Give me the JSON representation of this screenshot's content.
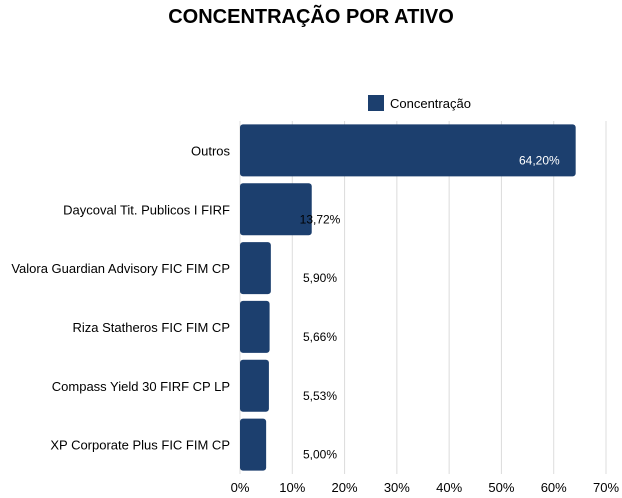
{
  "chart_data": {
    "type": "bar",
    "orientation": "horizontal",
    "title": "CONCENTRAÇÃO POR ATIVO",
    "categories": [
      "Outros",
      "Daycoval Tit. Publicos I FIRF",
      "Valora Guardian Advisory FIC FIM CP",
      "Riza Statheros FIC FIM CP",
      "Compass Yield 30 FIRF CP LP",
      "XP Corporate Plus FIC FIM CP"
    ],
    "series": [
      {
        "name": "Concentração",
        "values": [
          64.2,
          13.72,
          5.9,
          5.66,
          5.53,
          5.0
        ],
        "labels": [
          "64,20%",
          "13,72%",
          "5,90%",
          "5,66%",
          "5,53%",
          "5,00%"
        ],
        "color": "#1c3f6e"
      }
    ],
    "xlim": [
      0,
      70
    ],
    "xticks": [
      "0%",
      "10%",
      "20%",
      "30%",
      "40%",
      "50%",
      "60%",
      "70%"
    ],
    "xlabel": "",
    "ylabel": "",
    "grid": "vertical",
    "legend": "top-center"
  }
}
